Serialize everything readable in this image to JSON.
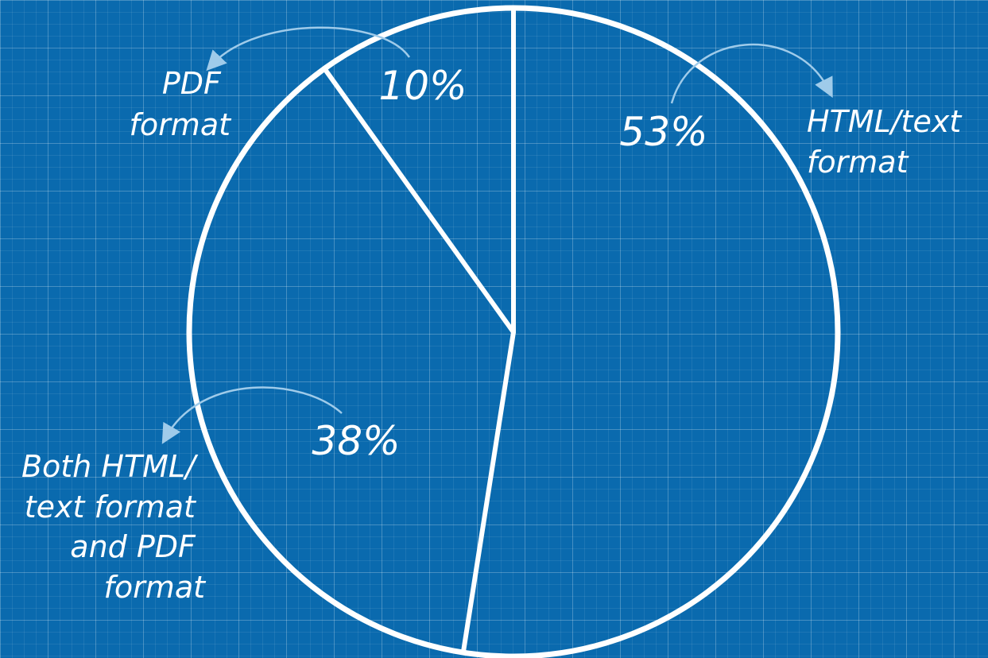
{
  "chart_data": {
    "type": "pie",
    "slices": [
      {
        "label": "HTML/text format",
        "value": 53,
        "display": "53%"
      },
      {
        "label": "Both HTML/ text format and PDF format",
        "value": 38,
        "display": "38%"
      },
      {
        "label": "PDF format",
        "value": 10,
        "display": "10%"
      }
    ],
    "label_lines": {
      "html_text": [
        "HTML/text",
        "format"
      ],
      "both": [
        "Both HTML/",
        "text format",
        "and PDF",
        "format"
      ],
      "pdf": [
        "PDF",
        "format"
      ]
    },
    "start_angle": "12 o'clock",
    "direction": "clockwise",
    "colors": {
      "background": "#0a6aae",
      "outline": "#ffffff",
      "arrow": "#9fcbea"
    }
  }
}
